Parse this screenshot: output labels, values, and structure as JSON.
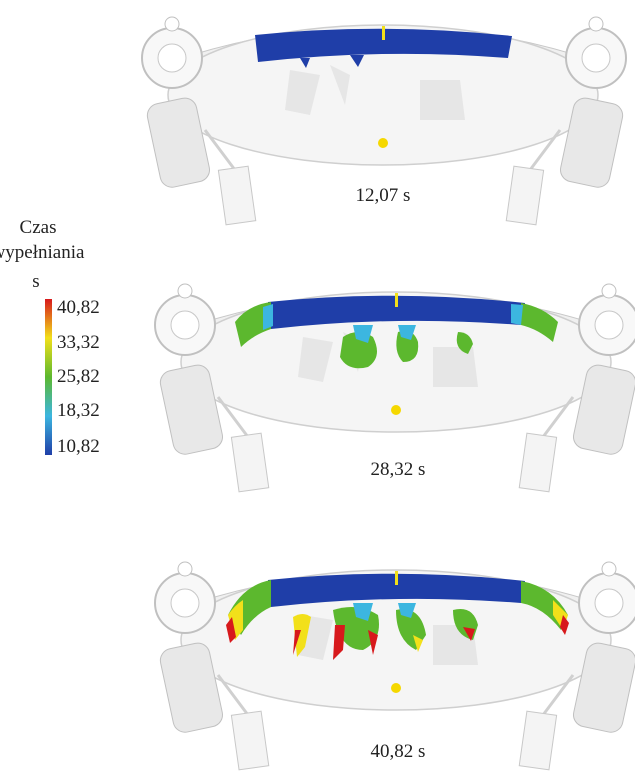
{
  "legend": {
    "title_lines": [
      "Czas",
      "wypełniania"
    ],
    "unit": "s",
    "labels": [
      "40,82",
      "33,32",
      "25,82",
      "18,32",
      "10,82"
    ]
  },
  "panels": [
    {
      "time": "12,07 s"
    },
    {
      "time": "28,32 s"
    },
    {
      "time": "40,82 s"
    }
  ]
}
